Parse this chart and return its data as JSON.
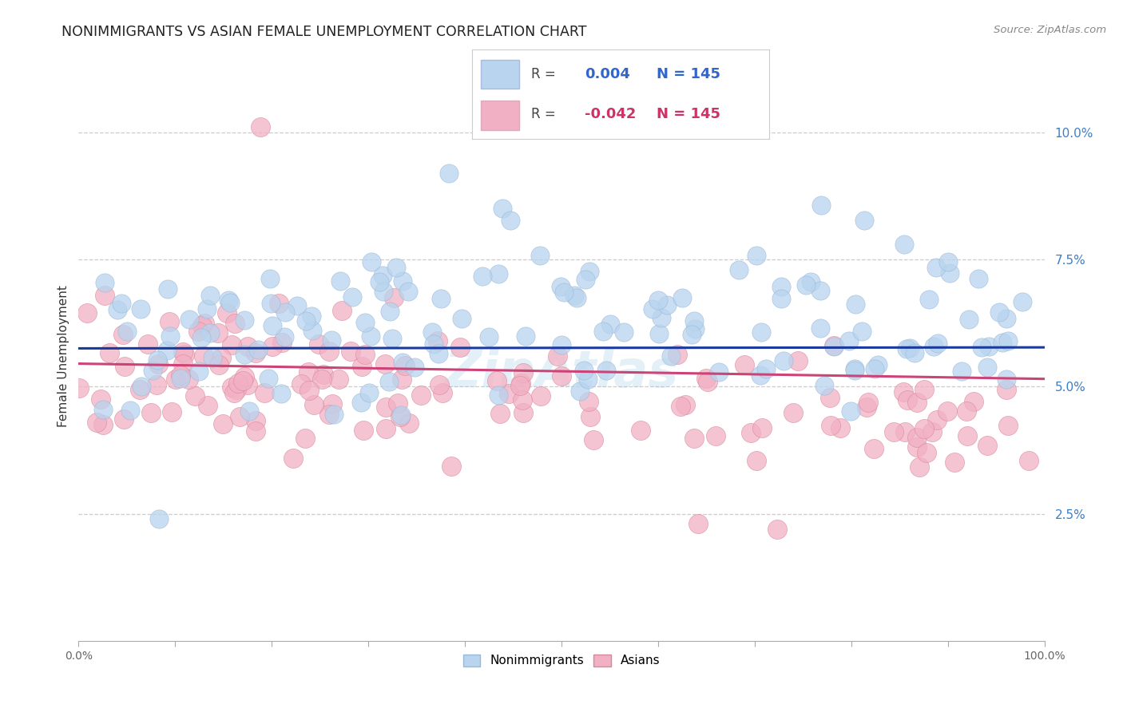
{
  "title": "NONIMMIGRANTS VS ASIAN FEMALE UNEMPLOYMENT CORRELATION CHART",
  "source": "Source: ZipAtlas.com",
  "ylabel": "Female Unemployment",
  "ytick_values": [
    2.5,
    5.0,
    7.5,
    10.0
  ],
  "blue_line_color": "#1a3a9e",
  "pink_line_color": "#cc4477",
  "watermark": "ZipAtlas",
  "xlim": [
    0,
    100
  ],
  "ylim": [
    0,
    11.2
  ],
  "blue_color": "#b8d4ee",
  "pink_color": "#f2b0c4",
  "blue_edge": "#9ab8d8",
  "pink_edge": "#d8889a",
  "R_blue": "0.004",
  "R_pink": "-0.042",
  "N_blue": "145",
  "N_pink": "145",
  "label_nonimm": "Nonimmigrants",
  "label_asians": "Asians",
  "legend_color_text": "#3366cc",
  "legend_pink_text": "#cc3366"
}
